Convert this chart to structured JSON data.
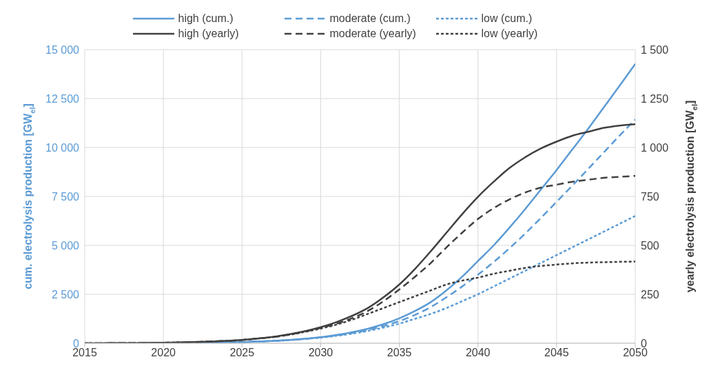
{
  "chart_data": {
    "type": "line",
    "ylabel": "cum. electrolysis production [GW$_{el}$]",
    "y2label": "yearly electrolysis production [GW$_{el}$]",
    "x": [
      2015,
      2016,
      2017,
      2018,
      2019,
      2020,
      2021,
      2022,
      2023,
      2024,
      2025,
      2026,
      2027,
      2028,
      2029,
      2030,
      2031,
      2032,
      2033,
      2034,
      2035,
      2036,
      2037,
      2038,
      2039,
      2040,
      2041,
      2042,
      2043,
      2044,
      2045,
      2046,
      2047,
      2048,
      2049,
      2050
    ],
    "xlim": [
      2015,
      2050
    ],
    "xticks": [
      2015,
      2020,
      2025,
      2030,
      2035,
      2040,
      2045,
      2050
    ],
    "ylim": [
      0,
      15000
    ],
    "yticks": [
      0,
      {
        "value": 2500,
        "label": "2 500"
      },
      {
        "value": 5000,
        "label": "5 000"
      },
      {
        "value": 7500,
        "label": "7 500"
      },
      {
        "value": 10000,
        "label": "10 000"
      },
      {
        "value": 12500,
        "label": "12 500"
      },
      {
        "value": 15000,
        "label": "15 000"
      }
    ],
    "y2lim": [
      0,
      1500
    ],
    "y2ticks": [
      0,
      250,
      500,
      750,
      {
        "value": 1000,
        "label": "1 000"
      },
      {
        "value": 1250,
        "label": "1 250"
      },
      {
        "value": 1500,
        "label": "1 500"
      }
    ],
    "grid": true,
    "legend": "top",
    "marker": "none",
    "series": [
      {
        "name": "high (cum.)",
        "color": "#5b9bd5",
        "line_style": "solid",
        "values": [
          null,
          null,
          null,
          null,
          null,
          null,
          null,
          20,
          30,
          50,
          60,
          90,
          120,
          170,
          230,
          310,
          420,
          560,
          740,
          975,
          1275,
          1650,
          2100,
          2700,
          3400,
          4200,
          5000,
          5900,
          6850,
          7850,
          8850,
          9900,
          10950,
          12050,
          13150,
          14270
        ]
      },
      {
        "name": "moderate (cum.)",
        "color": "#5b9bd5",
        "line_style": "dashed",
        "values": [
          null,
          null,
          null,
          null,
          null,
          null,
          null,
          20,
          30,
          50,
          60,
          90,
          120,
          160,
          220,
          300,
          400,
          520,
          680,
          880,
          1130,
          1450,
          1850,
          2350,
          2900,
          3500,
          4150,
          4850,
          5600,
          6400,
          7230,
          8050,
          8900,
          9750,
          10600,
          11430
        ]
      },
      {
        "name": "low (cum.)",
        "color": "#5b9bd5",
        "line_style": "dotted",
        "values": [
          null,
          null,
          null,
          null,
          null,
          null,
          null,
          20,
          30,
          50,
          60,
          90,
          120,
          160,
          220,
          290,
          380,
          490,
          630,
          800,
          1000,
          1250,
          1500,
          1800,
          2150,
          2500,
          2900,
          3300,
          3700,
          4100,
          4500,
          4900,
          5300,
          5700,
          6100,
          6500
        ]
      },
      {
        "name": "high (yearly)",
        "color": "#404040",
        "line_style": "solid",
        "axis": "y2",
        "values": [
          0,
          0,
          1,
          1,
          2,
          3,
          4,
          6,
          9,
          12,
          17,
          24,
          33,
          46,
          62,
          82,
          108,
          140,
          180,
          235,
          300,
          380,
          470,
          565,
          660,
          748,
          825,
          895,
          950,
          995,
          1030,
          1060,
          1080,
          1100,
          1112,
          1119
        ]
      },
      {
        "name": "moderate (yearly)",
        "color": "#404040",
        "line_style": "dashed",
        "axis": "y2",
        "values": [
          0,
          0,
          1,
          1,
          2,
          3,
          4,
          6,
          9,
          12,
          17,
          24,
          32,
          44,
          60,
          78,
          100,
          128,
          165,
          215,
          275,
          340,
          410,
          490,
          565,
          635,
          690,
          735,
          770,
          795,
          810,
          825,
          835,
          845,
          850,
          855
        ]
      },
      {
        "name": "low (yearly)",
        "color": "#404040",
        "line_style": "dotted",
        "axis": "y2",
        "values": [
          0,
          0,
          1,
          1,
          2,
          3,
          4,
          6,
          9,
          12,
          17,
          24,
          32,
          43,
          58,
          75,
          95,
          120,
          150,
          180,
          210,
          240,
          270,
          300,
          320,
          335,
          355,
          370,
          385,
          395,
          402,
          408,
          412,
          414,
          416,
          417
        ]
      }
    ]
  }
}
